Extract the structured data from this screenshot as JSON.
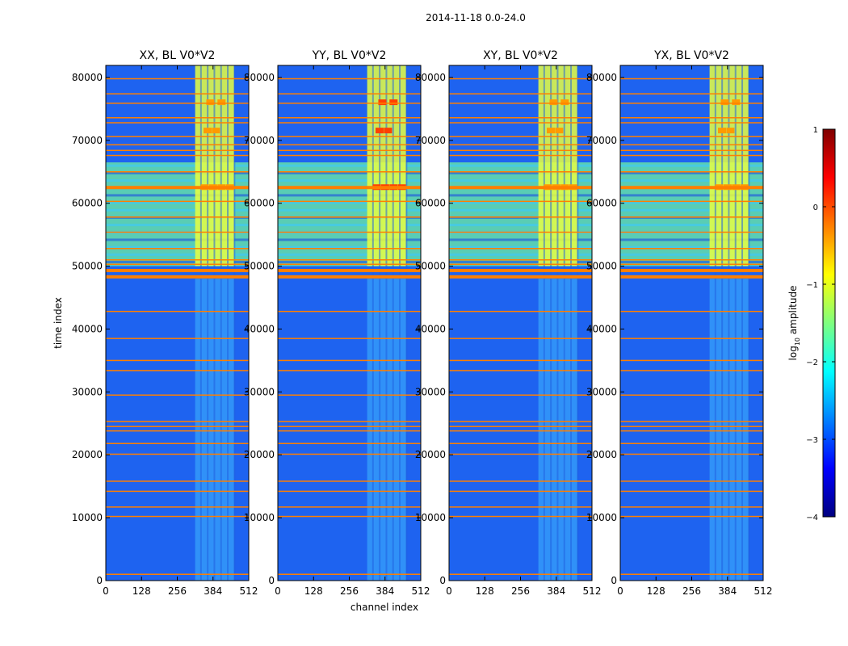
{
  "figure": {
    "suptitle": "2014-11-18 0.0-24.0",
    "xlabel": "channel index",
    "ylabel": "time index",
    "colorbar_label": "log10 amplitude",
    "colorbar_label_main": "log",
    "colorbar_label_sub": "10",
    "colorbar_label_tail": " amplitude"
  },
  "chart_data": [
    {
      "type": "heatmap",
      "title": "XX, BL V0*V2",
      "xlabel": "channel index",
      "ylabel": "time index",
      "xlim": [
        0,
        512
      ],
      "ylim": [
        0,
        81920
      ],
      "xticks": [
        0,
        128,
        256,
        384,
        512
      ],
      "yticks": [
        0,
        10000,
        20000,
        30000,
        40000,
        50000,
        60000,
        70000,
        80000
      ],
      "ytick_labels": [
        "0",
        "10000",
        "20000",
        "30000",
        "40000",
        "50000",
        "60000",
        "70000",
        "80000"
      ]
    },
    {
      "type": "heatmap",
      "title": "YY, BL V0*V2",
      "xlabel": "channel index",
      "ylabel": "time index",
      "xlim": [
        0,
        512
      ],
      "ylim": [
        0,
        81920
      ],
      "xticks": [
        0,
        128,
        256,
        384,
        512
      ],
      "yticks": [
        0,
        10000,
        20000,
        30000,
        40000,
        50000,
        60000,
        70000,
        80000
      ],
      "ytick_labels": [
        "0",
        "10000",
        "20000",
        "30000",
        "40000",
        "50000",
        "60000",
        "70000",
        "80000"
      ]
    },
    {
      "type": "heatmap",
      "title": "XY, BL V0*V2",
      "xlabel": "channel index",
      "ylabel": "time index",
      "xlim": [
        0,
        512
      ],
      "ylim": [
        0,
        81920
      ],
      "xticks": [
        0,
        128,
        256,
        384,
        512
      ],
      "yticks": [
        0,
        10000,
        20000,
        30000,
        40000,
        50000,
        60000,
        70000,
        80000
      ],
      "ytick_labels": [
        "0",
        "10000",
        "20000",
        "30000",
        "40000",
        "50000",
        "60000",
        "70000",
        "80000"
      ]
    },
    {
      "type": "heatmap",
      "title": "YX, BL V0*V2",
      "xlabel": "channel index",
      "ylabel": "time index",
      "xlim": [
        0,
        512
      ],
      "ylim": [
        0,
        81920
      ],
      "xticks": [
        0,
        128,
        256,
        384,
        512
      ],
      "yticks": [
        0,
        10000,
        20000,
        30000,
        40000,
        50000,
        60000,
        70000,
        80000
      ],
      "ytick_labels": [
        "0",
        "10000",
        "20000",
        "30000",
        "40000",
        "50000",
        "60000",
        "70000",
        "80000"
      ]
    }
  ],
  "colorbar": {
    "range": [
      -4,
      1
    ],
    "ticks": [
      -4,
      -3,
      -2,
      -1,
      0,
      1
    ],
    "tick_labels": [
      "−4",
      "−3",
      "−2",
      "−1",
      "0",
      "1"
    ],
    "colormap": "jet",
    "stops": [
      "#00007f",
      "#0000ff",
      "#007fff",
      "#00ffff",
      "#7fff7f",
      "#ffff00",
      "#ff7f00",
      "#ff0000",
      "#7f0000"
    ]
  },
  "features": {
    "bright_time_range": [
      50000,
      66500
    ],
    "hot_channel_range": [
      320,
      460
    ],
    "rfi_rows": [
      1000,
      10200,
      11700,
      14200,
      15800,
      20100,
      21800,
      23800,
      24500,
      25300,
      29500,
      33400,
      35000,
      38500,
      42800,
      48300,
      49300,
      50300,
      51000,
      52800,
      55400,
      57800,
      60300,
      62500,
      65000,
      67600,
      68400,
      69300,
      70600,
      72800,
      73600,
      75900,
      77400,
      79800
    ]
  }
}
